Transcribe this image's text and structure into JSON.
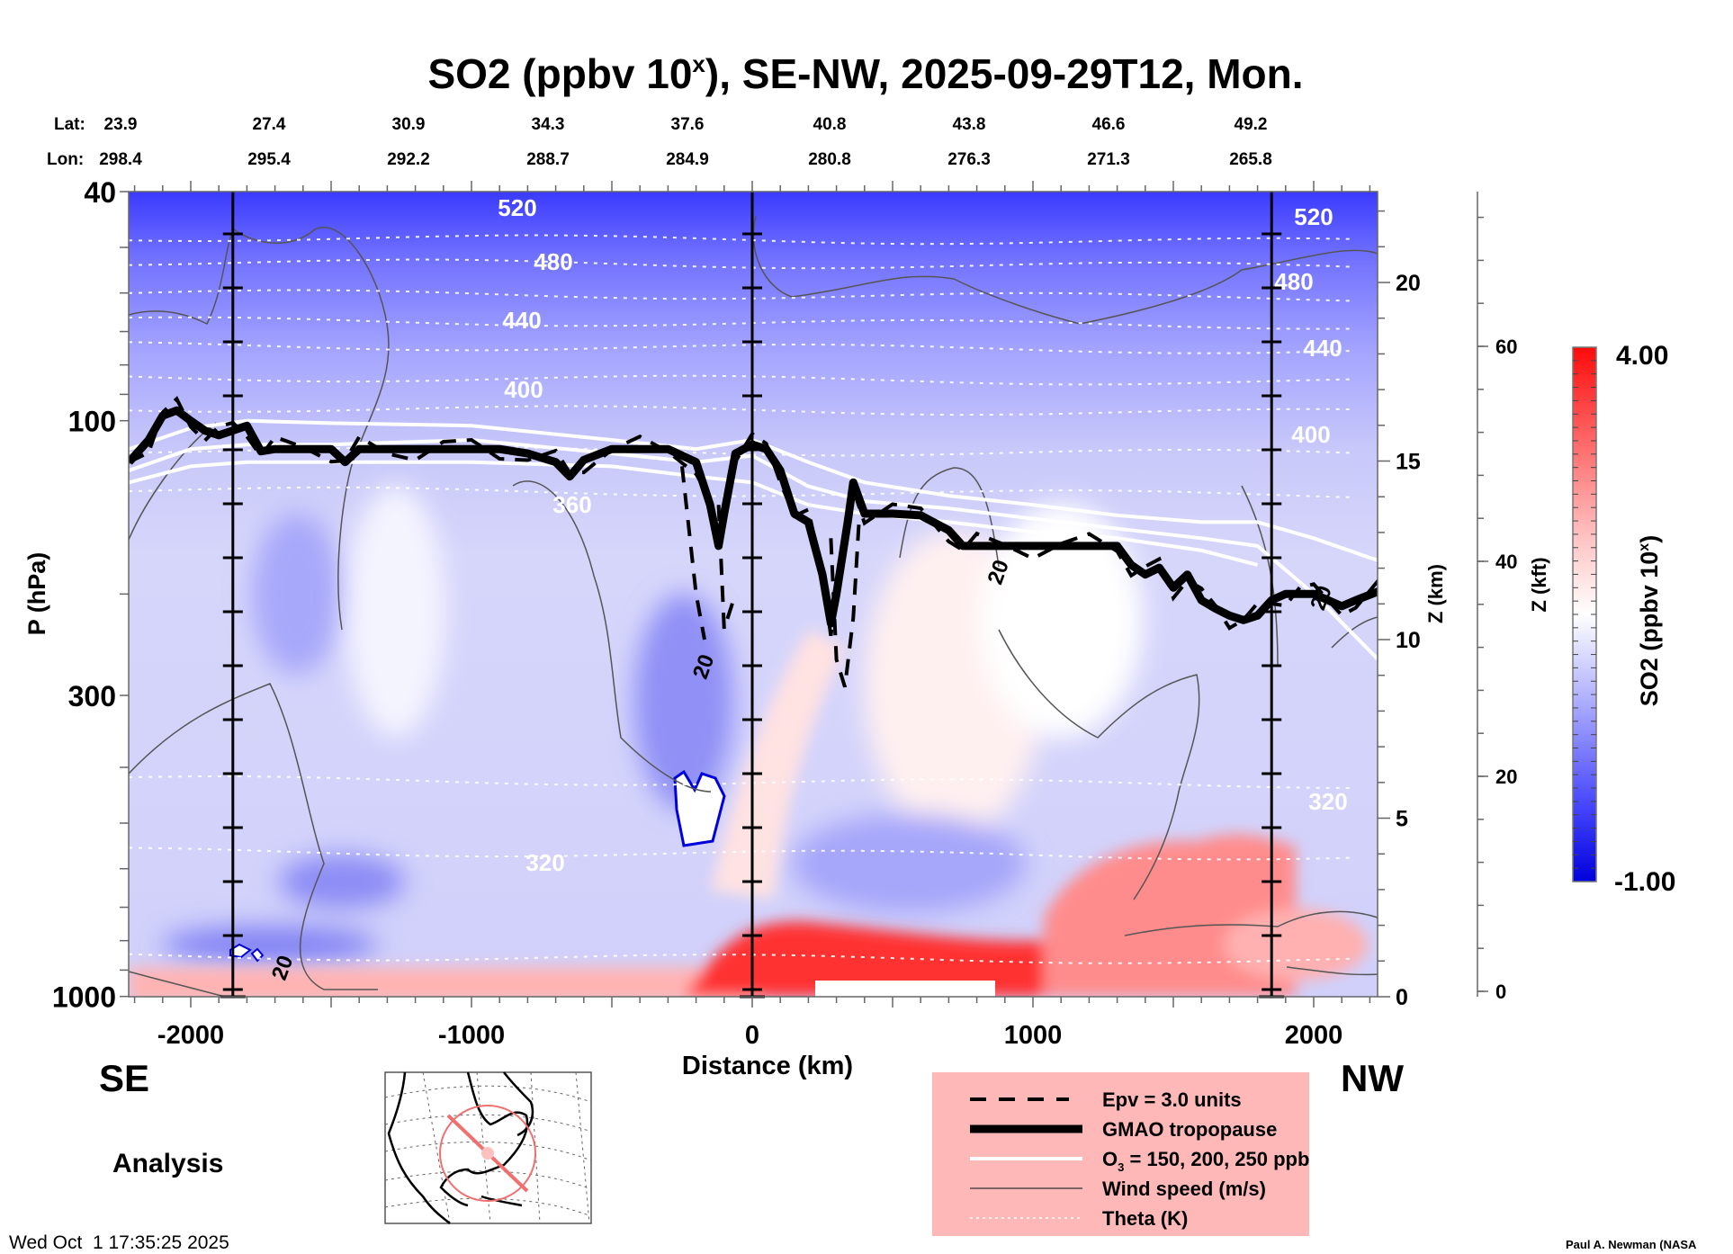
{
  "chart_data": {
    "type": "heatmap",
    "title": "SO2 (ppbv 10",
    "title_sup": "x",
    "title_rest": "), SE-NW, 2025-09-29T12, Mon.",
    "top_axis": {
      "lat_label": "Lat:",
      "lon_label": "Lon:",
      "lat": [
        "23.9",
        "27.4",
        "30.9",
        "34.3",
        "37.6",
        "40.8",
        "43.8",
        "46.6",
        "49.2"
      ],
      "lon": [
        "298.4",
        "295.4",
        "292.2",
        "288.7",
        "284.9",
        "280.8",
        "276.3",
        "271.3",
        "265.8"
      ],
      "positions_km": [
        -2200,
        -1700,
        -1200,
        -700,
        -200,
        300,
        800,
        1300,
        1800
      ]
    },
    "xaxis": {
      "label": "Distance (km)",
      "range": [
        -2220,
        2230
      ],
      "ticks": [
        -2000,
        -1000,
        0,
        1000,
        2000
      ],
      "tick_labels": [
        "-2000",
        "-1000",
        "0",
        "1000",
        "2000"
      ]
    },
    "yaxis_left": {
      "label": "P (hPa)",
      "scale": "log",
      "range": [
        1000,
        40
      ],
      "ticks": [
        40,
        100,
        300,
        1000
      ],
      "tick_labels": [
        "40",
        "100",
        "300",
        "1000"
      ]
    },
    "yaxis_right_km": {
      "label": "Z (km)",
      "ticks": [
        0,
        5,
        10,
        15,
        20
      ],
      "tick_labels": [
        "0",
        "5",
        "10",
        "15",
        "20"
      ]
    },
    "yaxis_right_kft": {
      "label": "Z (kft)",
      "ticks": [
        0,
        20,
        40,
        60
      ],
      "tick_labels": [
        "0",
        "20",
        "40",
        "60"
      ]
    },
    "vertical_markers_km": [
      -1850,
      0,
      1850
    ],
    "colorbar": {
      "label": "SO2 (ppbv 10",
      "label_sup": "x",
      "label_end": ")",
      "min": -1.0,
      "max": 4.0,
      "min_label": "-1.00",
      "max_label": "4.00",
      "colors": [
        "#0000e0",
        "#6a6aff",
        "#c8c8ff",
        "#ffffff",
        "#ffc8c8",
        "#ff6a6a",
        "#ff0a0a"
      ]
    },
    "theta_levels_K": [
      {
        "value": 520,
        "label": "520",
        "p": 49
      },
      {
        "value": 480,
        "label": "480",
        "p": 60
      },
      {
        "value": 440,
        "label": "440",
        "p": 73
      },
      {
        "value": 400,
        "label": "400",
        "p": 95
      },
      {
        "value": 360,
        "label": "360",
        "p": 135
      },
      {
        "value": 320,
        "label": "320",
        "p": 560
      }
    ],
    "theta_lines_p": [
      48,
      53,
      60,
      67,
      74,
      84,
      95,
      112,
      132,
      420,
      560,
      850
    ],
    "tropopause_km_p": [
      [
        -2220,
        118
      ],
      [
        -2150,
        108
      ],
      [
        -2100,
        98
      ],
      [
        -2050,
        96
      ],
      [
        -2000,
        100
      ],
      [
        -1950,
        104
      ],
      [
        -1900,
        106
      ],
      [
        -1850,
        104
      ],
      [
        -1800,
        102
      ],
      [
        -1750,
        113
      ],
      [
        -1700,
        112
      ],
      [
        -1600,
        112
      ],
      [
        -1500,
        112
      ],
      [
        -1450,
        118
      ],
      [
        -1400,
        112
      ],
      [
        -1300,
        112
      ],
      [
        -1200,
        112
      ],
      [
        -1100,
        112
      ],
      [
        -1000,
        112
      ],
      [
        -900,
        112
      ],
      [
        -800,
        114
      ],
      [
        -700,
        118
      ],
      [
        -650,
        125
      ],
      [
        -600,
        117
      ],
      [
        -500,
        112
      ],
      [
        -400,
        112
      ],
      [
        -300,
        112
      ],
      [
        -200,
        118
      ],
      [
        -150,
        140
      ],
      [
        -120,
        165
      ],
      [
        -100,
        145
      ],
      [
        -60,
        114
      ],
      [
        0,
        110
      ],
      [
        50,
        112
      ],
      [
        100,
        122
      ],
      [
        150,
        145
      ],
      [
        200,
        150
      ],
      [
        250,
        185
      ],
      [
        280,
        225
      ],
      [
        300,
        200
      ],
      [
        340,
        150
      ],
      [
        360,
        128
      ],
      [
        400,
        145
      ],
      [
        500,
        145
      ],
      [
        600,
        146
      ],
      [
        700,
        155
      ],
      [
        750,
        165
      ],
      [
        800,
        165
      ],
      [
        900,
        165
      ],
      [
        1000,
        165
      ],
      [
        1100,
        165
      ],
      [
        1200,
        165
      ],
      [
        1300,
        165
      ],
      [
        1350,
        178
      ],
      [
        1400,
        185
      ],
      [
        1450,
        180
      ],
      [
        1500,
        195
      ],
      [
        1550,
        185
      ],
      [
        1600,
        205
      ],
      [
        1650,
        212
      ],
      [
        1700,
        218
      ],
      [
        1750,
        222
      ],
      [
        1800,
        218
      ],
      [
        1850,
        205
      ],
      [
        1900,
        200
      ],
      [
        1950,
        200
      ],
      [
        2000,
        200
      ],
      [
        2100,
        210
      ],
      [
        2150,
        205
      ],
      [
        2230,
        198
      ]
    ],
    "o3_lines_km_p": [
      [
        [
          -2220,
          112
        ],
        [
          -2000,
          103
        ],
        [
          -1800,
          100
        ],
        [
          -1500,
          101
        ],
        [
          -1000,
          102
        ],
        [
          -500,
          108
        ],
        [
          -200,
          112
        ],
        [
          0,
          108
        ],
        [
          200,
          118
        ],
        [
          400,
          128
        ],
        [
          700,
          135
        ],
        [
          1000,
          140
        ],
        [
          1300,
          146
        ],
        [
          1600,
          150
        ],
        [
          1800,
          150
        ],
        [
          2000,
          160
        ],
        [
          2230,
          175
        ]
      ],
      [
        [
          -2220,
          122
        ],
        [
          -2000,
          112
        ],
        [
          -1800,
          110
        ],
        [
          -1500,
          110
        ],
        [
          -1000,
          108
        ],
        [
          -500,
          114
        ],
        [
          -200,
          118
        ],
        [
          0,
          115
        ],
        [
          200,
          130
        ],
        [
          400,
          138
        ],
        [
          700,
          142
        ],
        [
          1000,
          148
        ],
        [
          1300,
          154
        ],
        [
          1600,
          160
        ],
        [
          1800,
          165
        ],
        [
          2000,
          200
        ],
        [
          2230,
          260
        ]
      ],
      [
        [
          -2220,
          128
        ],
        [
          -2000,
          120
        ],
        [
          -1800,
          118
        ],
        [
          -1500,
          118
        ],
        [
          -1000,
          118
        ],
        [
          -500,
          120
        ],
        [
          -200,
          125
        ],
        [
          0,
          128
        ],
        [
          200,
          140
        ],
        [
          400,
          145
        ],
        [
          700,
          150
        ],
        [
          1000,
          156
        ],
        [
          1300,
          160
        ],
        [
          1600,
          168
        ],
        [
          1800,
          178
        ]
      ]
    ],
    "wind_label": "20",
    "wind_labels_pos_km_p": [
      [
        -1650,
        900
      ],
      [
        -150,
        270
      ],
      [
        900,
        185
      ],
      [
        2050,
        205
      ]
    ],
    "features": [
      {
        "name": "surface-so2-high-center",
        "km": [
          0,
          1000
        ],
        "p": [
          800,
          1000
        ],
        "value": "high"
      },
      {
        "name": "surface-so2-high-right",
        "km": [
          1000,
          2230
        ],
        "p": [
          550,
          1000
        ],
        "value": "high"
      },
      {
        "name": "upper-stratosphere-low",
        "km": [
          -2220,
          2230
        ],
        "p": [
          40,
          60
        ],
        "value": "low"
      }
    ]
  },
  "labels": {
    "se": "SE",
    "nw": "NW",
    "analysis": "Analysis",
    "timestamp": "Wed Oct  1 17:35:25 2025",
    "credit": "Paul A. Newman (NASA"
  },
  "legend": {
    "items": [
      {
        "style": "epv",
        "label": "Epv = 3.0 units"
      },
      {
        "style": "tropopause",
        "label": "GMAO tropopause"
      },
      {
        "style": "o3",
        "label": "O",
        "sub": "3",
        "rest": " = 150, 200, 250 ppb"
      },
      {
        "style": "wind",
        "label": "Wind speed (m/s)"
      },
      {
        "style": "theta",
        "label": "Theta (K)"
      }
    ],
    "background": "#ffb8b8"
  }
}
